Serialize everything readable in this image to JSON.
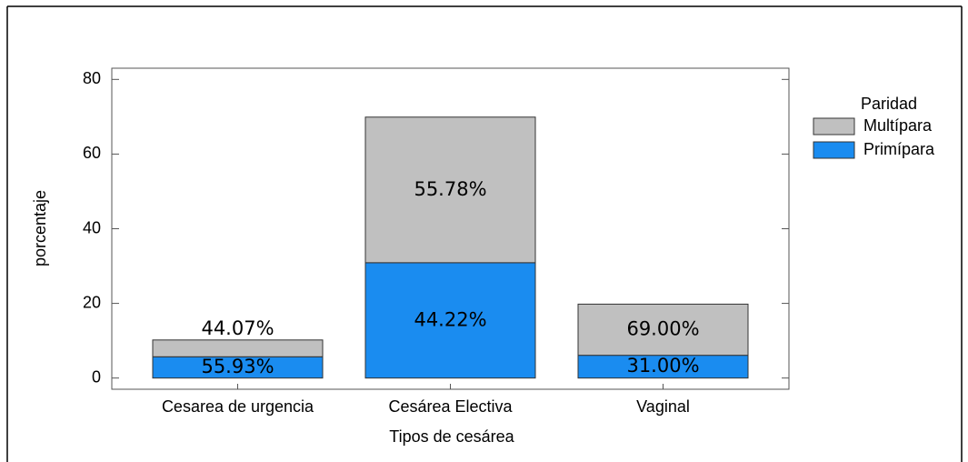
{
  "chart_data": {
    "type": "stacked_bar",
    "x_label": "Tipos de cesárea",
    "y_label": "porcentaje",
    "legend_title": "Paridad",
    "legend": "right",
    "categories": [
      "Cesarea de urgencia",
      "Cesárea Electiva",
      "Vaginal"
    ],
    "series": [
      {
        "name": "Primípara",
        "color": "#1a8cf0",
        "values": [
          5.7,
          30.9,
          6.1
        ],
        "percent_labels": [
          "55.93%",
          "44.22%",
          "31.00%"
        ]
      },
      {
        "name": "Multípara",
        "color": "#c0c0c0",
        "values": [
          4.5,
          39.0,
          13.7
        ],
        "percent_labels": [
          "44.07%",
          "55.78%",
          "69.00%"
        ]
      }
    ],
    "ylim": [
      -3,
      83
    ],
    "yticks": [
      0,
      20,
      40,
      60,
      80
    ]
  }
}
